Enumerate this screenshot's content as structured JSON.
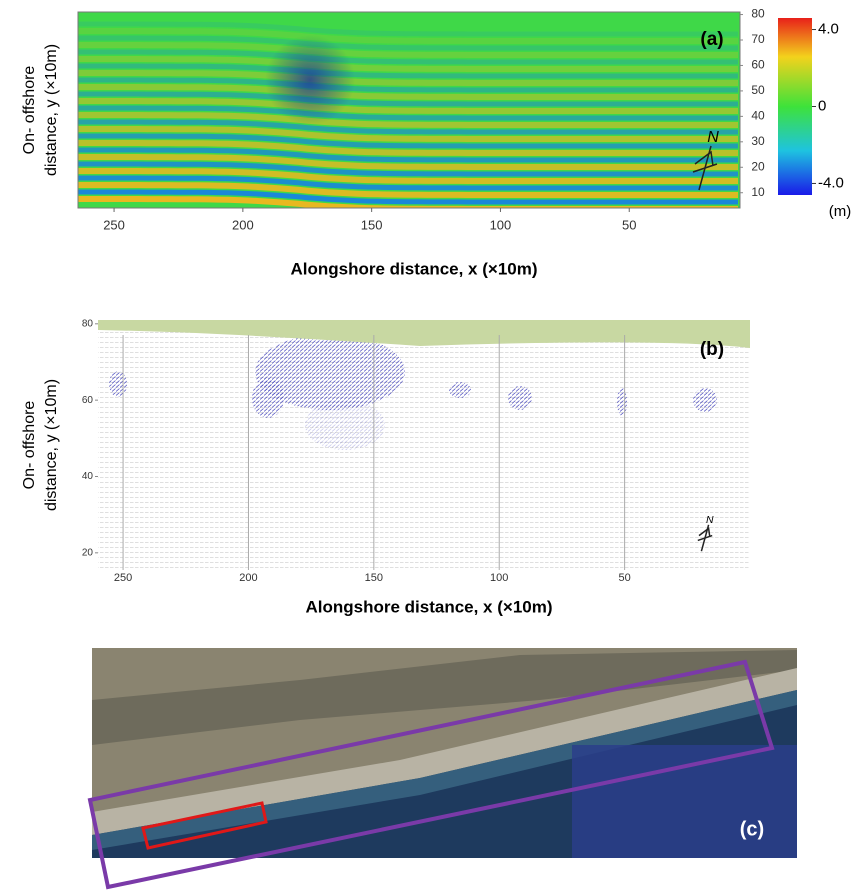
{
  "chart_data": [
    {
      "type": "heatmap",
      "label": "(a)",
      "xlabel": "Alongshore distance, x (×10m)",
      "ylabel": [
        "On- offshore",
        "distance, y (×10m)"
      ],
      "xlim": [
        264,
        7
      ],
      "ylim": [
        4,
        81
      ],
      "xticks": [
        250,
        200,
        150,
        100,
        50
      ],
      "yticks": [
        10,
        20,
        30,
        40,
        50,
        60,
        70,
        80
      ],
      "colorbar": {
        "clim": [
          -4.6,
          4.6
        ],
        "ticks": [
          {
            "value": 4,
            "label": "4.0"
          },
          0,
          {
            "value": -4,
            "label": "-4.0"
          }
        ],
        "unit": "(m)"
      },
      "north": "N"
    },
    {
      "type": "vector",
      "label": "(b)",
      "xlabel": "Alongshore distance, x (×10m)",
      "ylabel": [
        "On- offshore",
        "distance, y (×10m)"
      ],
      "xlim": [
        260,
        0
      ],
      "ylim": [
        15.5,
        81
      ],
      "xticks": [
        250,
        200,
        150,
        100,
        50
      ],
      "yticks": [
        80,
        60,
        40,
        20
      ],
      "grid": true,
      "north": "N"
    }
  ],
  "photo": {
    "label": "(c)"
  }
}
